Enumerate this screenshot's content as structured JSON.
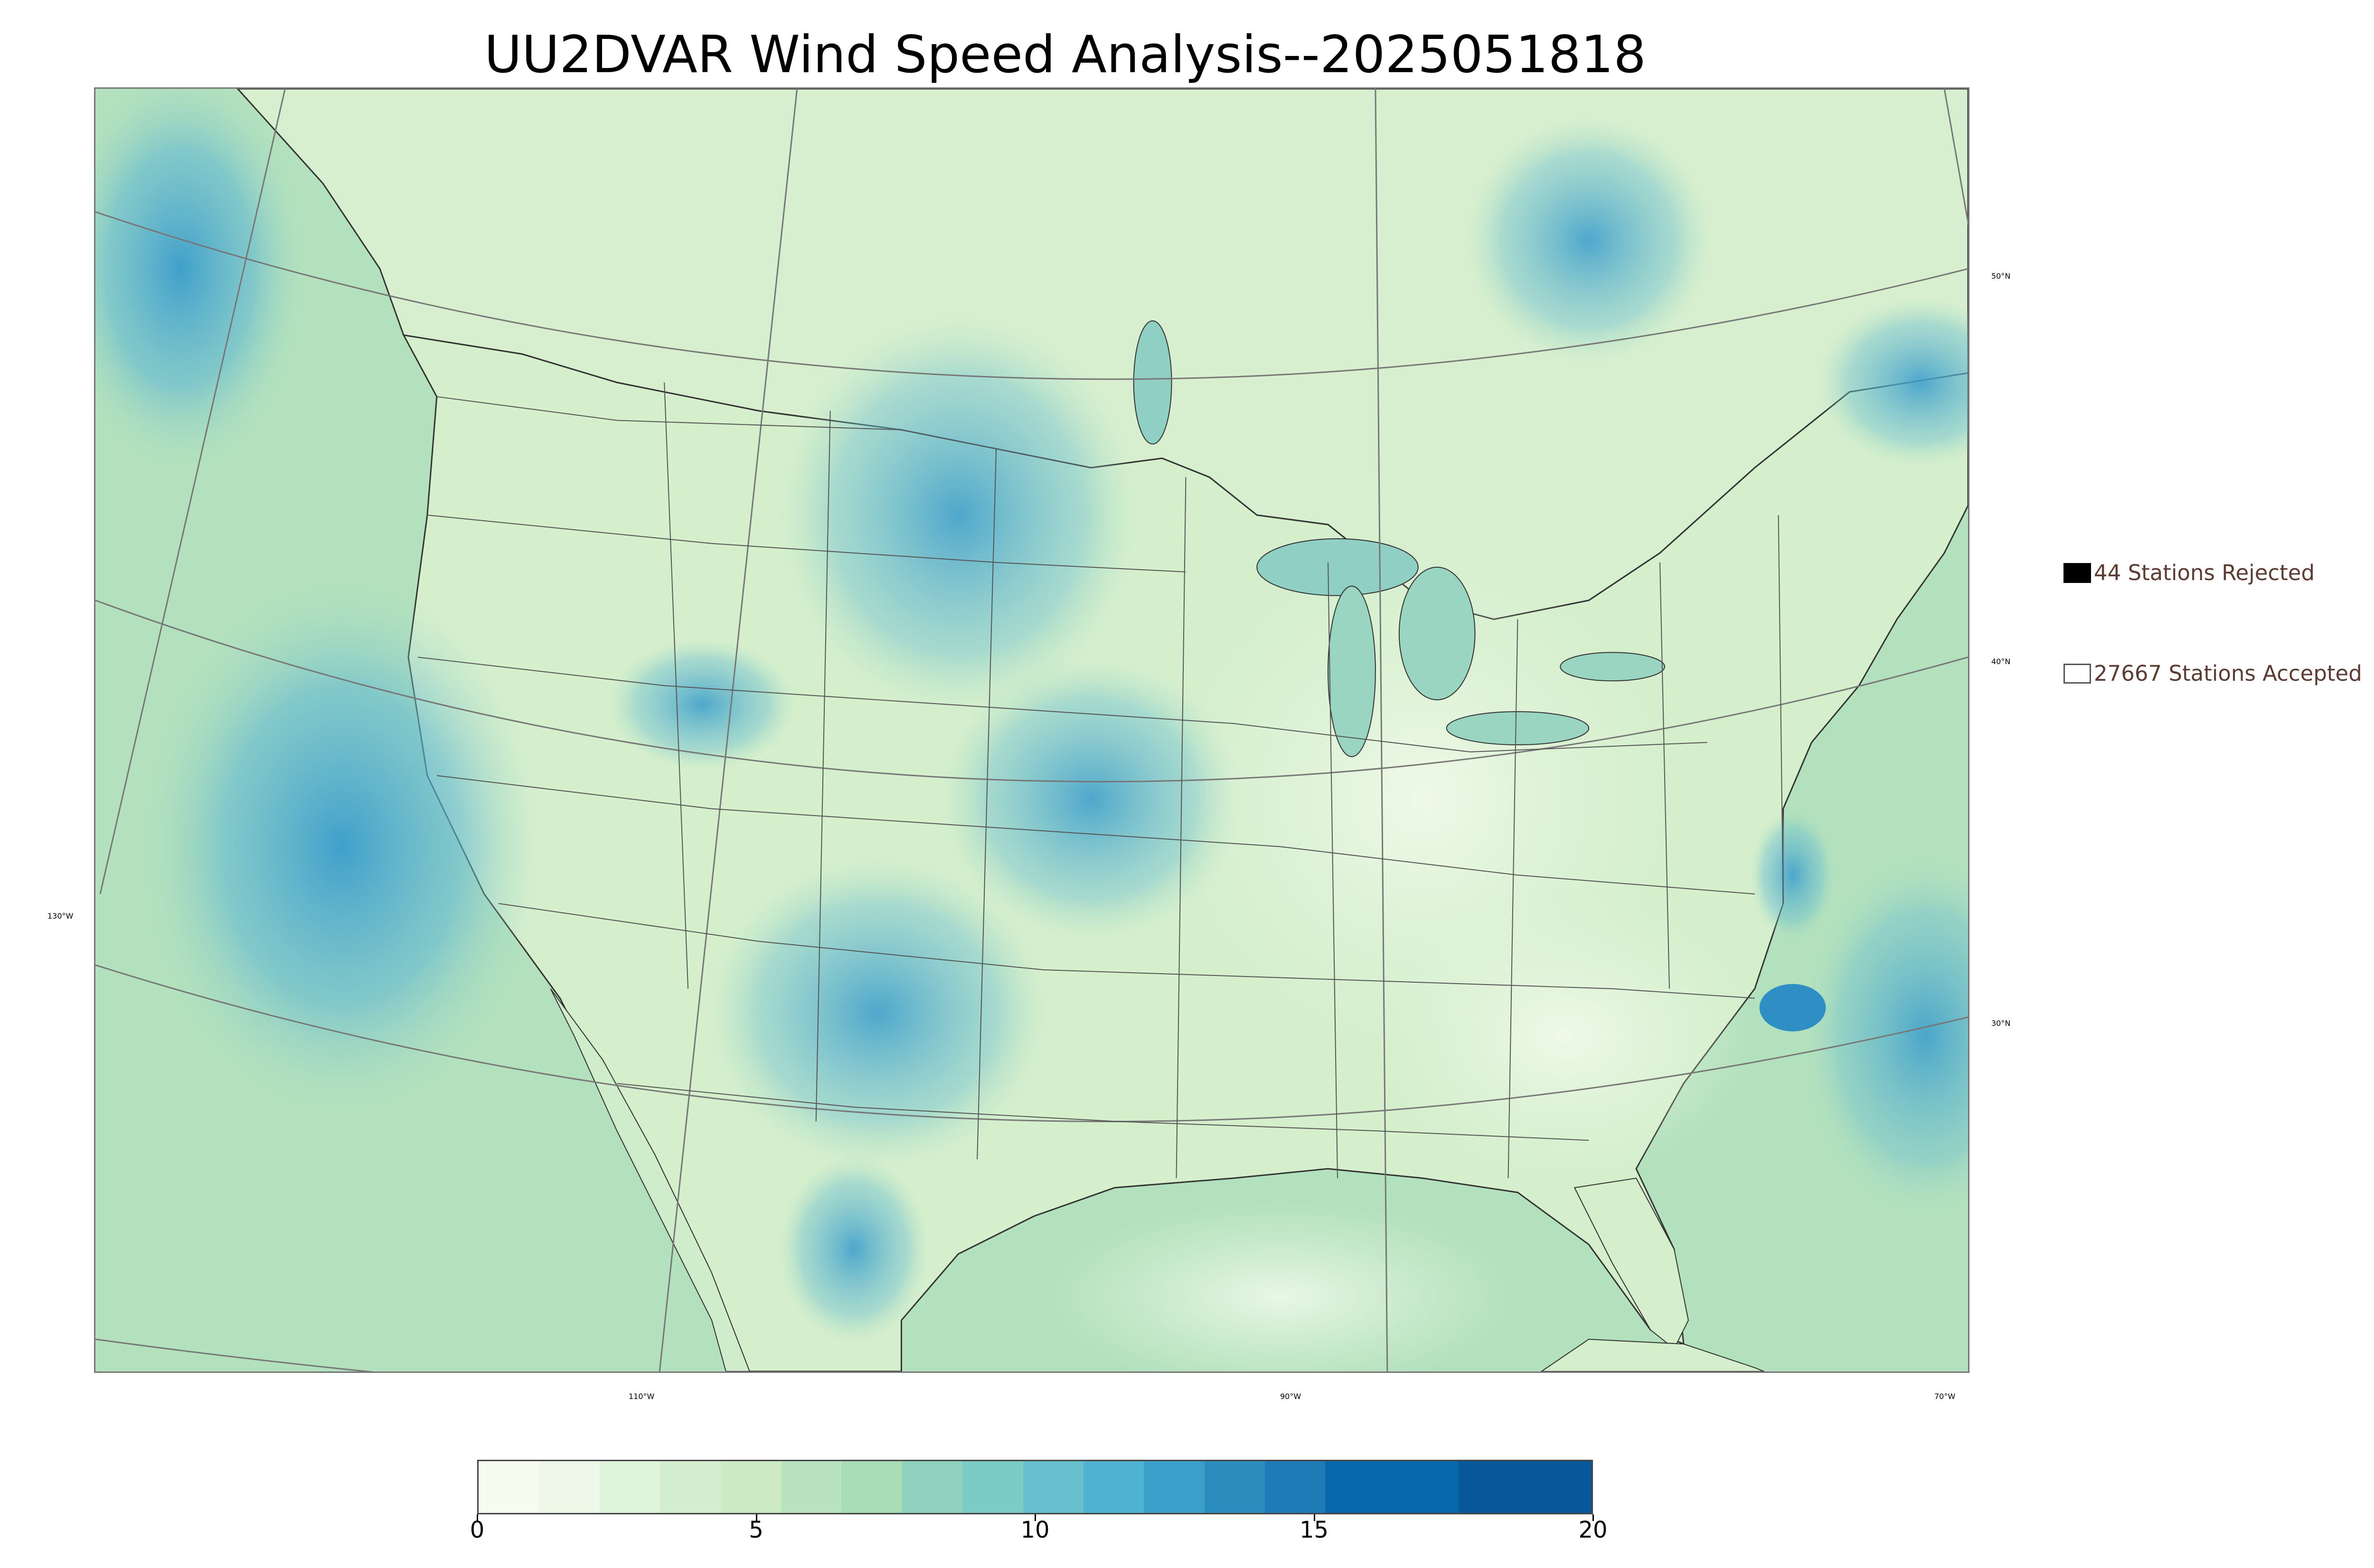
{
  "title": "UU2DVAR Wind Speed Analysis--2025051818",
  "map": {
    "longitude_labels": [
      {
        "text": "130°W"
      },
      {
        "text": "110°W"
      },
      {
        "text": "90°W"
      },
      {
        "text": "70°W"
      }
    ],
    "latitude_labels": [
      {
        "text": "50°N"
      },
      {
        "text": "40°N"
      },
      {
        "text": "30°N"
      }
    ],
    "colors": {
      "ocean_base": "#a9dcb8",
      "land_base": "#d3eecb",
      "high_wind": "#4aa6d0",
      "station_accepted_fill": "#ffffff",
      "station_accepted_edge": "#6b5a72",
      "station_rejected": "#000000",
      "borders": "#444444"
    }
  },
  "legend": {
    "rejected": {
      "label": "44 Stations Rejected",
      "count": 44
    },
    "accepted": {
      "label": "27667 Stations Accepted",
      "count": 27667
    }
  },
  "colorbar": {
    "min": 0,
    "max": 20,
    "ticks": [
      "0",
      "5",
      "10",
      "15",
      "20"
    ],
    "colors": [
      "#f7fcf0",
      "#eef8e8",
      "#e0f3db",
      "#d3eece",
      "#ccebc5",
      "#b8e3be",
      "#a8ddb5",
      "#8fd3be",
      "#7bccc4",
      "#66c0cd",
      "#4eb3d3",
      "#3aa0c9",
      "#2b8cbe",
      "#1f7bb5",
      "#0868ac",
      "#06589a"
    ]
  }
}
